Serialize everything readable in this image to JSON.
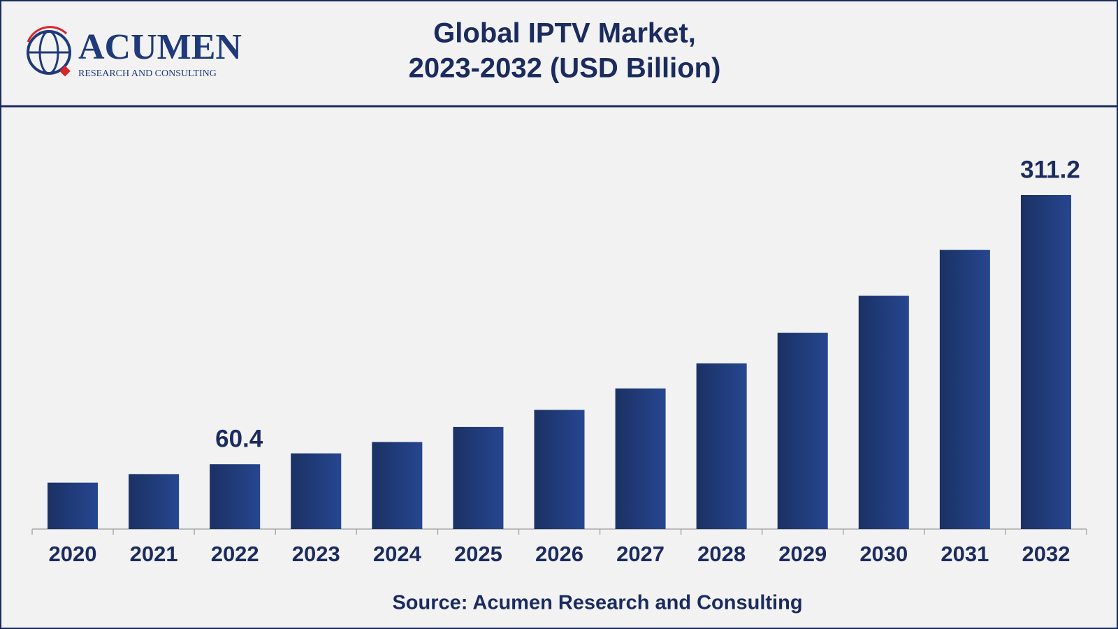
{
  "logo": {
    "name": "ACUMEN",
    "tagline": "RESEARCH AND CONSULTING"
  },
  "chart_data": {
    "type": "bar",
    "title": "Global IPTV Market,",
    "subtitle": "2023-2032 (USD Billion)",
    "categories": [
      "2020",
      "2021",
      "2022",
      "2023",
      "2024",
      "2025",
      "2026",
      "2027",
      "2028",
      "2029",
      "2030",
      "2031",
      "2032"
    ],
    "values": [
      43.2,
      51.2,
      60.4,
      70.5,
      81.1,
      95.1,
      111.0,
      131.0,
      154.3,
      182.9,
      217.4,
      260.0,
      311.2
    ],
    "value_labels": [
      null,
      null,
      "60.4",
      null,
      null,
      null,
      null,
      null,
      null,
      null,
      null,
      null,
      "311.2"
    ],
    "color": "#26468f",
    "source": "Source: Acumen Research and Consulting"
  }
}
